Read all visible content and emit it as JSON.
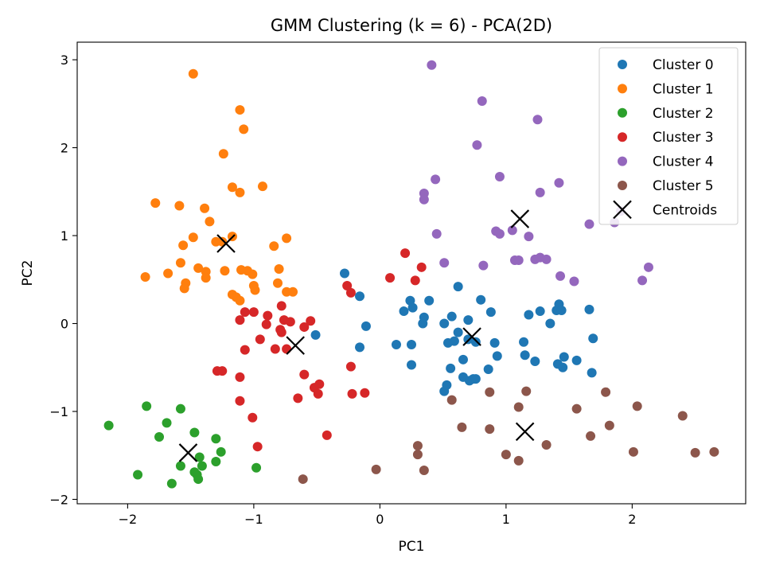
{
  "chart_data": {
    "type": "scatter",
    "title": "GMM Clustering (k = 6) - PCA(2D)",
    "xlabel": "PC1",
    "ylabel": "PC2",
    "xlim": [
      -2.4,
      2.9
    ],
    "ylim": [
      -2.05,
      3.2
    ],
    "xticks": [
      -2,
      -1,
      0,
      1,
      2
    ],
    "yticks": [
      -2,
      -1,
      0,
      1,
      2,
      3
    ],
    "xtick_labels": [
      "−2",
      "−1",
      "0",
      "1",
      "2"
    ],
    "ytick_labels": [
      "−2",
      "−1",
      "0",
      "1",
      "2",
      "3"
    ],
    "grid": false,
    "legend_position": "top-right",
    "series": [
      {
        "name": "Cluster 0",
        "color": "#1f77b4",
        "points": [
          [
            -0.28,
            0.57
          ],
          [
            -0.16,
            0.31
          ],
          [
            -0.11,
            -0.03
          ],
          [
            -0.16,
            -0.27
          ],
          [
            -0.51,
            -0.13
          ],
          [
            0.13,
            -0.24
          ],
          [
            0.19,
            0.14
          ],
          [
            0.24,
            0.26
          ],
          [
            0.26,
            0.18
          ],
          [
            0.25,
            -0.24
          ],
          [
            0.25,
            -0.47
          ],
          [
            0.34,
            0.0
          ],
          [
            0.35,
            0.07
          ],
          [
            0.39,
            0.26
          ],
          [
            0.51,
            0.0
          ],
          [
            0.54,
            -0.22
          ],
          [
            0.56,
            -0.51
          ],
          [
            0.57,
            0.08
          ],
          [
            0.59,
            -0.2
          ],
          [
            0.62,
            -0.1
          ],
          [
            0.62,
            0.42
          ],
          [
            0.66,
            -0.41
          ],
          [
            0.66,
            -0.61
          ],
          [
            0.7,
            -0.18
          ],
          [
            0.7,
            0.04
          ],
          [
            0.71,
            -0.65
          ],
          [
            0.74,
            -0.63
          ],
          [
            0.76,
            -0.63
          ],
          [
            0.76,
            -0.21
          ],
          [
            0.8,
            0.27
          ],
          [
            0.86,
            -0.52
          ],
          [
            0.88,
            0.13
          ],
          [
            0.91,
            -0.22
          ],
          [
            0.93,
            -0.37
          ],
          [
            0.51,
            -0.77
          ],
          [
            0.53,
            -0.7
          ],
          [
            1.14,
            -0.21
          ],
          [
            1.15,
            -0.36
          ],
          [
            1.18,
            0.1
          ],
          [
            1.23,
            -0.43
          ],
          [
            1.27,
            0.14
          ],
          [
            1.35,
            0.0
          ],
          [
            1.4,
            0.15
          ],
          [
            1.41,
            -0.46
          ],
          [
            1.42,
            0.22
          ],
          [
            1.44,
            0.15
          ],
          [
            1.45,
            -0.5
          ],
          [
            1.46,
            -0.38
          ],
          [
            1.56,
            -0.42
          ],
          [
            1.66,
            0.16
          ],
          [
            1.68,
            -0.56
          ],
          [
            1.69,
            -0.17
          ]
        ]
      },
      {
        "name": "Cluster 1",
        "color": "#ff7f0e",
        "points": [
          [
            -1.48,
            2.84
          ],
          [
            -1.11,
            2.43
          ],
          [
            -1.08,
            2.21
          ],
          [
            -1.24,
            1.93
          ],
          [
            -1.78,
            1.37
          ],
          [
            -1.59,
            1.34
          ],
          [
            -1.39,
            1.31
          ],
          [
            -1.17,
            1.55
          ],
          [
            -1.11,
            1.49
          ],
          [
            -0.93,
            1.56
          ],
          [
            -1.35,
            1.16
          ],
          [
            -1.48,
            0.98
          ],
          [
            -1.56,
            0.89
          ],
          [
            -1.17,
            0.99
          ],
          [
            -0.74,
            0.97
          ],
          [
            -1.25,
            0.93
          ],
          [
            -1.3,
            0.93
          ],
          [
            -0.84,
            0.88
          ],
          [
            -1.58,
            0.69
          ],
          [
            -1.68,
            0.57
          ],
          [
            -1.86,
            0.53
          ],
          [
            -1.44,
            0.63
          ],
          [
            -1.38,
            0.59
          ],
          [
            -1.38,
            0.52
          ],
          [
            -1.23,
            0.6
          ],
          [
            -1.1,
            0.61
          ],
          [
            -1.05,
            0.6
          ],
          [
            -1.01,
            0.56
          ],
          [
            -0.8,
            0.62
          ],
          [
            -1.54,
            0.46
          ],
          [
            -1.55,
            0.4
          ],
          [
            -1.0,
            0.43
          ],
          [
            -0.99,
            0.38
          ],
          [
            -0.81,
            0.46
          ],
          [
            -0.74,
            0.36
          ],
          [
            -0.69,
            0.36
          ],
          [
            -1.17,
            0.33
          ],
          [
            -1.14,
            0.3
          ],
          [
            -1.11,
            0.26
          ]
        ]
      },
      {
        "name": "Cluster 2",
        "color": "#2ca02c",
        "points": [
          [
            -2.15,
            -1.16
          ],
          [
            -1.85,
            -0.94
          ],
          [
            -1.58,
            -0.97
          ],
          [
            -1.69,
            -1.13
          ],
          [
            -1.75,
            -1.29
          ],
          [
            -1.47,
            -1.24
          ],
          [
            -1.3,
            -1.31
          ],
          [
            -1.26,
            -1.46
          ],
          [
            -1.43,
            -1.52
          ],
          [
            -1.92,
            -1.72
          ],
          [
            -1.58,
            -1.62
          ],
          [
            -1.41,
            -1.62
          ],
          [
            -1.47,
            -1.69
          ],
          [
            -1.45,
            -1.72
          ],
          [
            -1.44,
            -1.77
          ],
          [
            -1.3,
            -1.57
          ],
          [
            -1.65,
            -1.82
          ],
          [
            -0.98,
            -1.64
          ]
        ]
      },
      {
        "name": "Cluster 3",
        "color": "#d62728",
        "points": [
          [
            0.2,
            0.8
          ],
          [
            0.33,
            0.64
          ],
          [
            0.28,
            0.49
          ],
          [
            0.08,
            0.52
          ],
          [
            -0.26,
            0.43
          ],
          [
            -0.23,
            0.35
          ],
          [
            -1.11,
            0.04
          ],
          [
            -1.07,
            0.13
          ],
          [
            -1.0,
            0.13
          ],
          [
            -0.89,
            0.09
          ],
          [
            -0.9,
            -0.01
          ],
          [
            -0.78,
            0.2
          ],
          [
            -0.79,
            -0.07
          ],
          [
            -0.78,
            -0.1
          ],
          [
            -0.76,
            0.04
          ],
          [
            -0.71,
            0.02
          ],
          [
            -0.6,
            -0.04
          ],
          [
            -0.55,
            0.03
          ],
          [
            -0.95,
            -0.18
          ],
          [
            -0.83,
            -0.29
          ],
          [
            -0.74,
            -0.29
          ],
          [
            -1.07,
            -0.3
          ],
          [
            -1.29,
            -0.54
          ],
          [
            -1.25,
            -0.54
          ],
          [
            -1.11,
            -0.61
          ],
          [
            -0.6,
            -0.58
          ],
          [
            -0.52,
            -0.73
          ],
          [
            -0.48,
            -0.69
          ],
          [
            -0.49,
            -0.8
          ],
          [
            -0.65,
            -0.85
          ],
          [
            -1.11,
            -0.88
          ],
          [
            -1.01,
            -1.07
          ],
          [
            -0.97,
            -1.4
          ],
          [
            -0.42,
            -1.27
          ],
          [
            -0.23,
            -0.49
          ],
          [
            -0.22,
            -0.8
          ],
          [
            -0.12,
            -0.79
          ]
        ]
      },
      {
        "name": "Cluster 4",
        "color": "#9467bd",
        "points": [
          [
            0.41,
            2.94
          ],
          [
            0.81,
            2.53
          ],
          [
            1.25,
            2.32
          ],
          [
            0.77,
            2.03
          ],
          [
            0.44,
            1.64
          ],
          [
            0.95,
            1.67
          ],
          [
            0.35,
            1.48
          ],
          [
            0.35,
            1.41
          ],
          [
            1.27,
            1.49
          ],
          [
            1.42,
            1.6
          ],
          [
            0.45,
            1.02
          ],
          [
            0.92,
            1.05
          ],
          [
            0.95,
            1.02
          ],
          [
            1.05,
            1.06
          ],
          [
            1.18,
            0.99
          ],
          [
            1.66,
            1.13
          ],
          [
            1.86,
            1.15
          ],
          [
            1.91,
            1.28
          ],
          [
            0.51,
            0.69
          ],
          [
            0.82,
            0.66
          ],
          [
            1.07,
            0.72
          ],
          [
            1.1,
            0.72
          ],
          [
            1.23,
            0.73
          ],
          [
            1.27,
            0.75
          ],
          [
            1.32,
            0.73
          ],
          [
            1.43,
            0.54
          ],
          [
            1.54,
            0.48
          ],
          [
            2.08,
            0.49
          ],
          [
            2.13,
            0.64
          ]
        ]
      },
      {
        "name": "Cluster 5",
        "color": "#8c564b",
        "points": [
          [
            0.57,
            -0.87
          ],
          [
            0.87,
            -0.78
          ],
          [
            1.16,
            -0.77
          ],
          [
            1.79,
            -0.78
          ],
          [
            1.1,
            -0.95
          ],
          [
            1.56,
            -0.97
          ],
          [
            2.04,
            -0.94
          ],
          [
            2.4,
            -1.05
          ],
          [
            0.65,
            -1.18
          ],
          [
            0.87,
            -1.2
          ],
          [
            1.67,
            -1.28
          ],
          [
            1.82,
            -1.16
          ],
          [
            0.3,
            -1.39
          ],
          [
            1.32,
            -1.38
          ],
          [
            0.3,
            -1.49
          ],
          [
            1.0,
            -1.49
          ],
          [
            1.1,
            -1.56
          ],
          [
            2.01,
            -1.46
          ],
          [
            2.5,
            -1.47
          ],
          [
            2.65,
            -1.46
          ],
          [
            -0.03,
            -1.66
          ],
          [
            0.35,
            -1.67
          ],
          [
            -0.61,
            -1.77
          ]
        ]
      }
    ],
    "centroids": {
      "name": "Centroids",
      "color": "#000000",
      "points": [
        [
          -1.52,
          -1.47
        ],
        [
          -1.22,
          0.91
        ],
        [
          -0.67,
          -0.25
        ],
        [
          0.73,
          -0.15
        ],
        [
          1.11,
          1.19
        ],
        [
          1.15,
          -1.23
        ]
      ]
    }
  }
}
